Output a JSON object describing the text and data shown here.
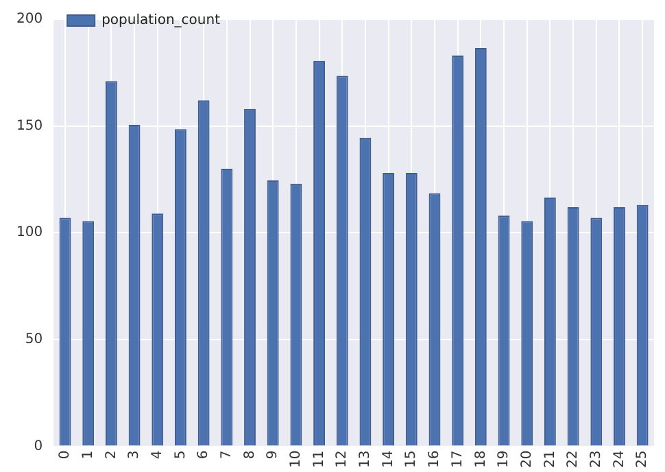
{
  "chart_data": {
    "type": "bar",
    "categories": [
      "0",
      "1",
      "2",
      "3",
      "4",
      "5",
      "6",
      "7",
      "8",
      "9",
      "10",
      "11",
      "12",
      "13",
      "14",
      "15",
      "16",
      "17",
      "18",
      "19",
      "20",
      "21",
      "22",
      "23",
      "24",
      "25"
    ],
    "series": [
      {
        "name": "population_count",
        "color": "#4c72b0",
        "values": [
          107,
          105.5,
          171,
          150.5,
          109,
          148.5,
          162,
          130,
          158,
          124.5,
          123,
          180.5,
          173.5,
          144.5,
          128,
          128,
          118.5,
          183,
          186.5,
          108,
          105.5,
          116.5,
          112,
          107,
          112,
          113
        ]
      }
    ],
    "ylim": [
      0,
      200
    ],
    "yticks": [
      0,
      50,
      100,
      150,
      200
    ],
    "grid": true,
    "legend": "top left"
  }
}
